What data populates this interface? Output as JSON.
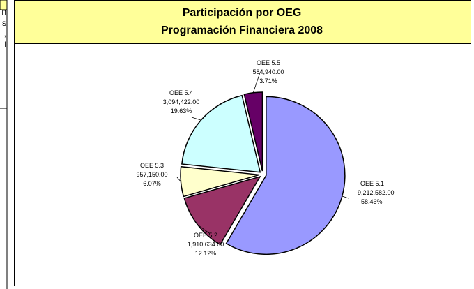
{
  "left_fragments": [
    "n",
    "s",
    ",",
    "l"
  ],
  "chart_data": {
    "type": "pie",
    "title": [
      "Participación por OEG",
      "Programación Financiera 2008"
    ],
    "categories": [
      "OEE 5.1",
      "OEE 5.2",
      "OEE 5.3",
      "OEE 5.4",
      "OEE 5.5"
    ],
    "values": [
      9212582,
      1910634,
      957150,
      3094422,
      584940
    ],
    "value_labels": [
      "9,212,582.00",
      "1,910,634.00",
      "957,150.00",
      "3,094,422.00",
      "584,940.00"
    ],
    "percentages": [
      58.46,
      12.12,
      6.07,
      19.63,
      3.71
    ],
    "percentage_labels": [
      "58.46%",
      "12.12%",
      "6.07%",
      "19.63%",
      "3.71%"
    ],
    "colors": [
      "#9999ff",
      "#993366",
      "#ffffcc",
      "#ccffff",
      "#660066"
    ]
  }
}
